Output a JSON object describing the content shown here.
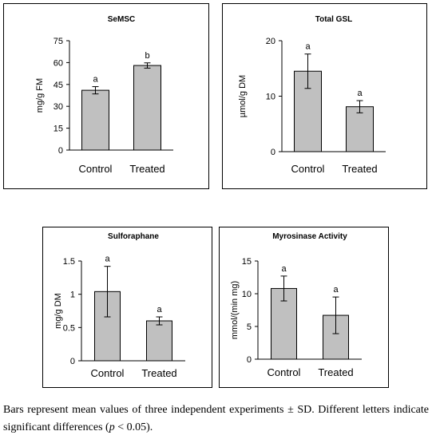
{
  "chart_data": [
    {
      "type": "bar",
      "title": "SeMSC",
      "ylabel": "mg/g FM",
      "categories": [
        "Control",
        "Treated"
      ],
      "values": [
        41,
        58
      ],
      "errors": [
        2.5,
        1.8
      ],
      "significance": [
        "a",
        "b"
      ],
      "ylim": [
        0,
        75
      ],
      "yticks": [
        "0",
        "15",
        "30",
        "45",
        "60",
        "75"
      ],
      "ytick_values": [
        0,
        15,
        30,
        45,
        60,
        75
      ]
    },
    {
      "type": "bar",
      "title": "Total GSL",
      "ylabel": "µmol/g DM",
      "categories": [
        "Control",
        "Treated"
      ],
      "values": [
        14.5,
        8.1
      ],
      "errors": [
        3.1,
        1.1
      ],
      "significance": [
        "a",
        "a"
      ],
      "ylim": [
        0,
        20
      ],
      "yticks": [
        "0",
        "10",
        "20"
      ],
      "ytick_values": [
        0,
        10,
        20
      ]
    },
    {
      "type": "bar",
      "title": "Sulforaphane",
      "ylabel": "mg/g DM",
      "categories": [
        "Control",
        "Treated"
      ],
      "values": [
        1.04,
        0.6
      ],
      "errors": [
        0.38,
        0.06
      ],
      "significance": [
        "a",
        "a"
      ],
      "ylim": [
        0,
        1.5
      ],
      "yticks": [
        "0",
        "0.5",
        "1",
        "1.5"
      ],
      "ytick_values": [
        0,
        0.5,
        1,
        1.5
      ]
    },
    {
      "type": "bar",
      "title": "Myrosinase Activity",
      "ylabel": "mmol/(min mg)",
      "categories": [
        "Control",
        "Treated"
      ],
      "values": [
        10.8,
        6.7
      ],
      "errors": [
        1.9,
        2.8
      ],
      "significance": [
        "a",
        "a"
      ],
      "ylim": [
        0,
        15
      ],
      "yticks": [
        "0",
        "5",
        "10",
        "15"
      ],
      "ytick_values": [
        0,
        5,
        10,
        15
      ]
    }
  ],
  "caption": {
    "part1": "Bars represent mean values of three independent experiments ± SD. Different letters indicate significant differences (",
    "p": "p",
    "part2": " < 0.05)."
  }
}
